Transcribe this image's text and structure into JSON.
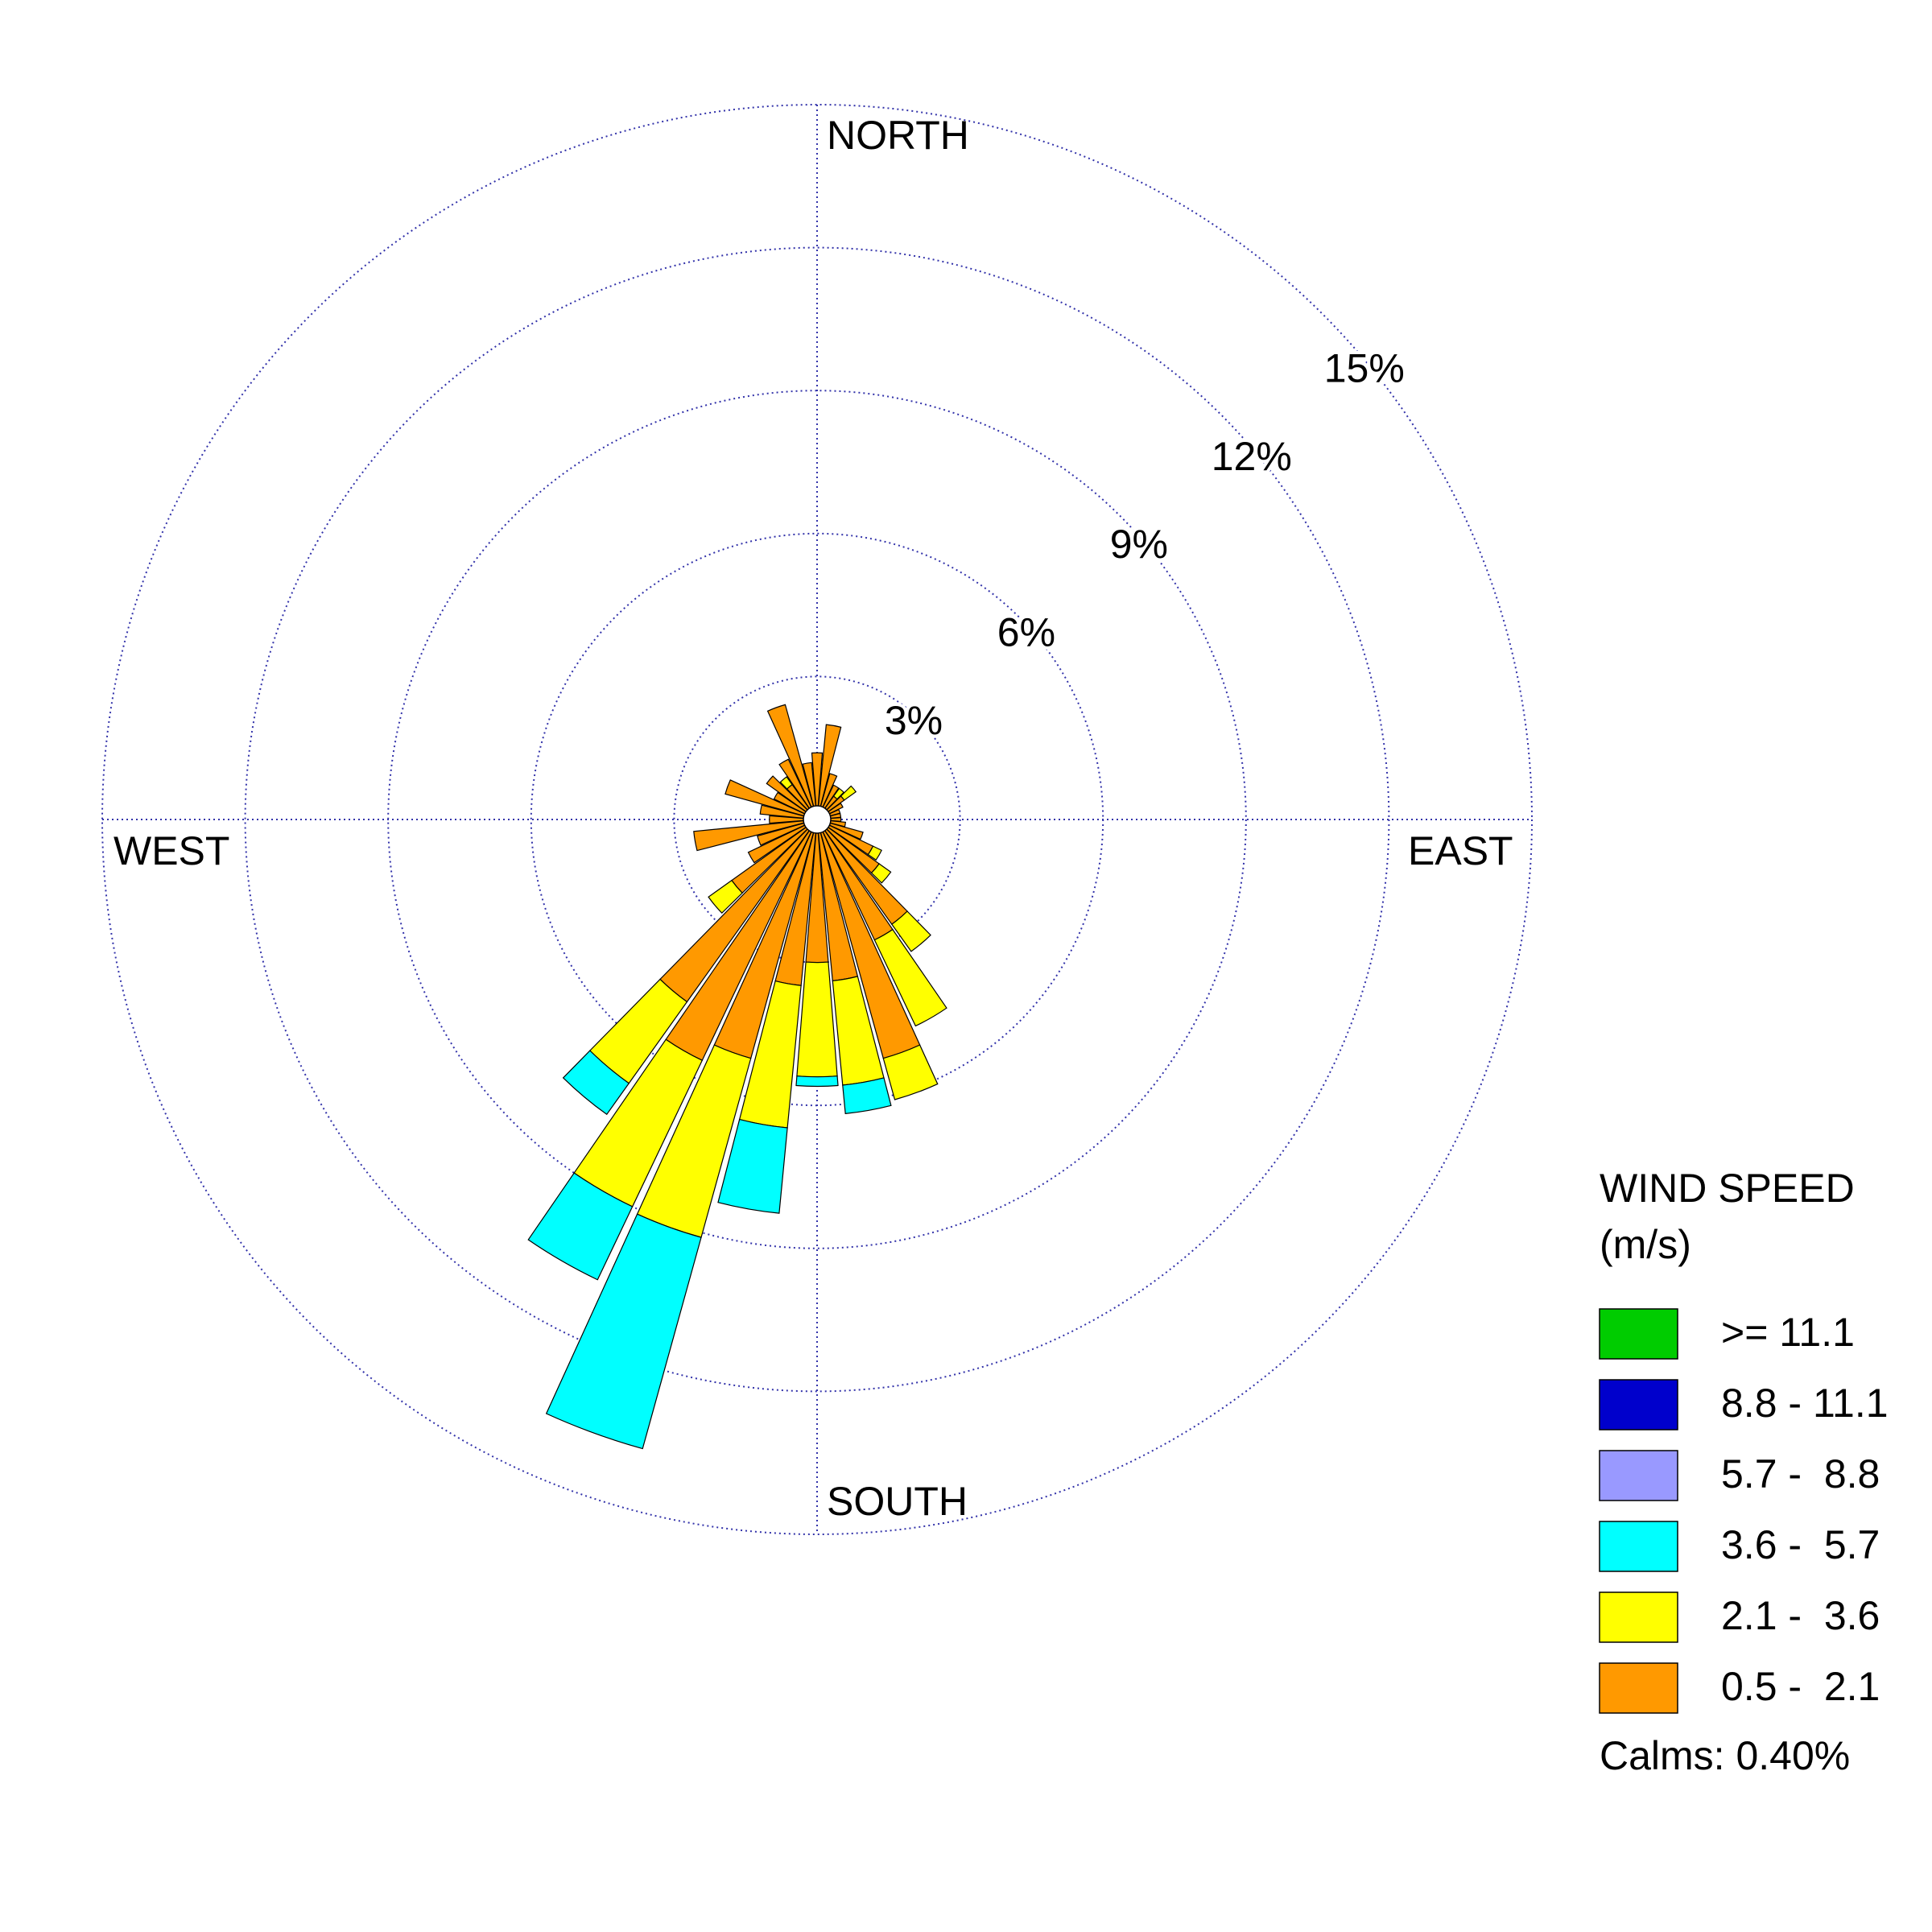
{
  "chart_data": {
    "type": "windrose",
    "direction_labels": {
      "north": "NORTH",
      "east": "EAST",
      "south": "SOUTH",
      "west": "WEST"
    },
    "theta": [
      0,
      10,
      20,
      30,
      40,
      50,
      60,
      70,
      80,
      90,
      100,
      110,
      120,
      130,
      140,
      150,
      160,
      170,
      180,
      190,
      200,
      210,
      220,
      230,
      240,
      250,
      260,
      270,
      280,
      290,
      300,
      310,
      320,
      330,
      340,
      350
    ],
    "rlim": [
      0,
      15
    ],
    "rticks": [
      {
        "value": 3,
        "label": "3%"
      },
      {
        "value": 6,
        "label": "6%"
      },
      {
        "value": 9,
        "label": "9%"
      },
      {
        "value": 12,
        "label": "12%"
      },
      {
        "value": 15,
        "label": "15%"
      }
    ],
    "grid": true,
    "legend_title": [
      "WIND SPEED",
      "(m/s)"
    ],
    "series": [
      {
        "name": "0.5 -  2.1",
        "color": "#ff9900",
        "values": [
          1.4,
          2.0,
          1.0,
          0.8,
          0.6,
          0.7,
          0.6,
          0.5,
          0.5,
          0.5,
          0.6,
          1.0,
          1.3,
          1.6,
          2.7,
          2.8,
          5.2,
          3.4,
          3.0,
          3.5,
          5.2,
          5.6,
          4.7,
          2.2,
          1.6,
          1.3,
          2.6,
          1.0,
          1.2,
          2.0,
          1.0,
          1.3,
          0.9,
          1.4,
          2.5,
          1.2
        ]
      },
      {
        "name": "2.1 -  3.6",
        "color": "#ffff00",
        "values": [
          0,
          0,
          0,
          0,
          0.2,
          0.3,
          0,
          0,
          0,
          0,
          0,
          0,
          0.2,
          0.3,
          0.7,
          2.0,
          0.9,
          2.2,
          2.4,
          3.0,
          3.9,
          3.4,
          2.1,
          0.6,
          0,
          0,
          0,
          0,
          0,
          0,
          0,
          0,
          0.2,
          0,
          0,
          0
        ]
      },
      {
        "name": "3.6 -  5.7",
        "color": "#00ffff",
        "values": [
          0,
          0,
          0,
          0,
          0,
          0,
          0,
          0,
          0,
          0,
          0,
          0,
          0,
          0,
          0,
          0,
          0,
          0.6,
          0.2,
          1.8,
          4.6,
          1.7,
          0.8,
          0,
          0,
          0,
          0,
          0,
          0,
          0,
          0,
          0,
          0,
          0,
          0,
          0
        ]
      },
      {
        "name": "5.7 -  8.8",
        "color": "#9999ff",
        "values": [
          0,
          0,
          0,
          0,
          0,
          0,
          0,
          0,
          0,
          0,
          0,
          0,
          0,
          0,
          0,
          0,
          0,
          0,
          0,
          0,
          0,
          0,
          0,
          0,
          0,
          0,
          0,
          0,
          0,
          0,
          0,
          0,
          0,
          0,
          0,
          0
        ]
      },
      {
        "name": "8.8 - 11.1",
        "color": "#0000cc",
        "values": [
          0,
          0,
          0,
          0,
          0,
          0,
          0,
          0,
          0,
          0,
          0,
          0,
          0,
          0,
          0,
          0,
          0,
          0,
          0,
          0,
          0,
          0,
          0,
          0,
          0,
          0,
          0,
          0,
          0,
          0,
          0,
          0,
          0,
          0,
          0,
          0
        ]
      },
      {
        "name": ">= 11.1",
        "color": "#00cc00",
        "values": [
          0,
          0,
          0,
          0,
          0,
          0,
          0,
          0,
          0,
          0,
          0,
          0,
          0,
          0,
          0,
          0,
          0,
          0,
          0,
          0,
          0,
          0,
          0,
          0,
          0,
          0,
          0,
          0,
          0,
          0,
          0,
          0,
          0,
          0,
          0,
          0
        ]
      }
    ],
    "calms": "Calms: 0.40%"
  }
}
